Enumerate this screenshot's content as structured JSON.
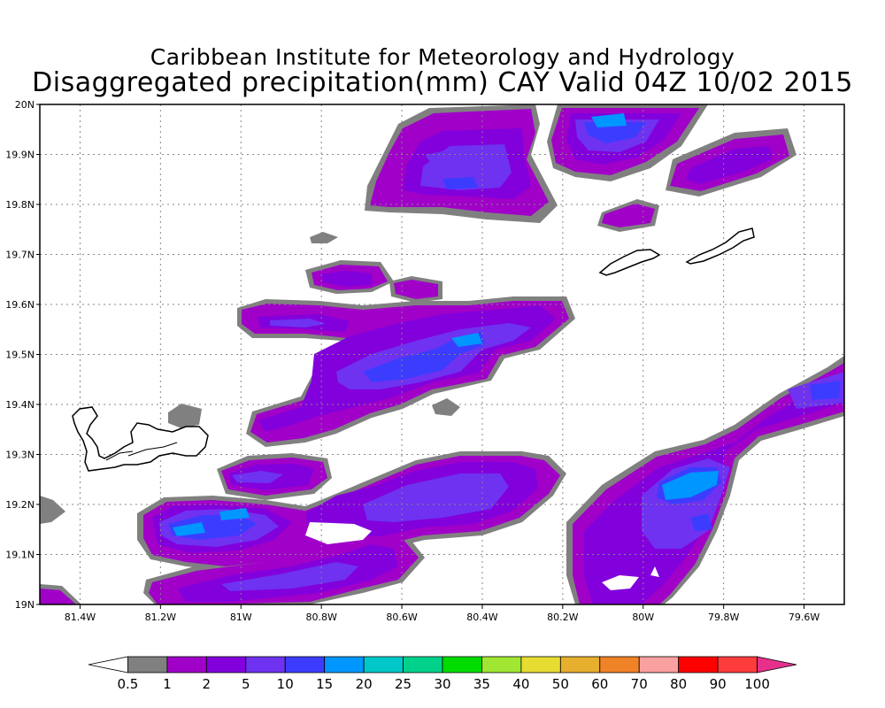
{
  "title": {
    "line1": "Caribbean Institute for Meteorology and Hydrology",
    "line2": "Disaggregated precipitation(mm) CAY Valid 04Z 10/02 2015"
  },
  "map": {
    "lon_range": [
      -81.5,
      -79.5
    ],
    "lat_range": [
      19.0,
      20.0
    ],
    "grid": true,
    "lon_ticks": [
      {
        "value": -81.4,
        "label": "81.4W"
      },
      {
        "value": -81.2,
        "label": "81.2W"
      },
      {
        "value": -81.0,
        "label": "81W"
      },
      {
        "value": -80.8,
        "label": "80.8W"
      },
      {
        "value": -80.6,
        "label": "80.6W"
      },
      {
        "value": -80.4,
        "label": "80.4W"
      },
      {
        "value": -80.2,
        "label": "80.2W"
      },
      {
        "value": -80.0,
        "label": "80W"
      },
      {
        "value": -79.8,
        "label": "79.8W"
      },
      {
        "value": -79.6,
        "label": "79.6W"
      }
    ],
    "lat_ticks": [
      {
        "value": 19.0,
        "label": "19N"
      },
      {
        "value": 19.1,
        "label": "19.1N"
      },
      {
        "value": 19.2,
        "label": "19.2N"
      },
      {
        "value": 19.3,
        "label": "19.3N"
      },
      {
        "value": 19.4,
        "label": "19.4N"
      },
      {
        "value": 19.5,
        "label": "19.5N"
      },
      {
        "value": 19.6,
        "label": "19.6N"
      },
      {
        "value": 19.7,
        "label": "19.7N"
      },
      {
        "value": 19.8,
        "label": "19.8N"
      },
      {
        "value": 19.9,
        "label": "19.9N"
      },
      {
        "value": 20.0,
        "label": "20N"
      }
    ],
    "islands": [
      "grand-cayman",
      "little-cayman",
      "cayman-brac"
    ]
  },
  "colorbar": {
    "levels": [
      "0.5",
      "1",
      "2",
      "5",
      "10",
      "15",
      "20",
      "25",
      "30",
      "35",
      "40",
      "50",
      "60",
      "70",
      "80",
      "90",
      "100"
    ],
    "colors": [
      "#ffffff",
      "#808080",
      "#a000c8",
      "#8200dc",
      "#6e32f0",
      "#3c3cff",
      "#0096ff",
      "#00c8c8",
      "#00d28c",
      "#00dc00",
      "#a0e632",
      "#e6dc32",
      "#e6af2d",
      "#f08228",
      "#fba0a0",
      "#ff0000",
      "#ff3c3c",
      "#e6308c"
    ]
  }
}
